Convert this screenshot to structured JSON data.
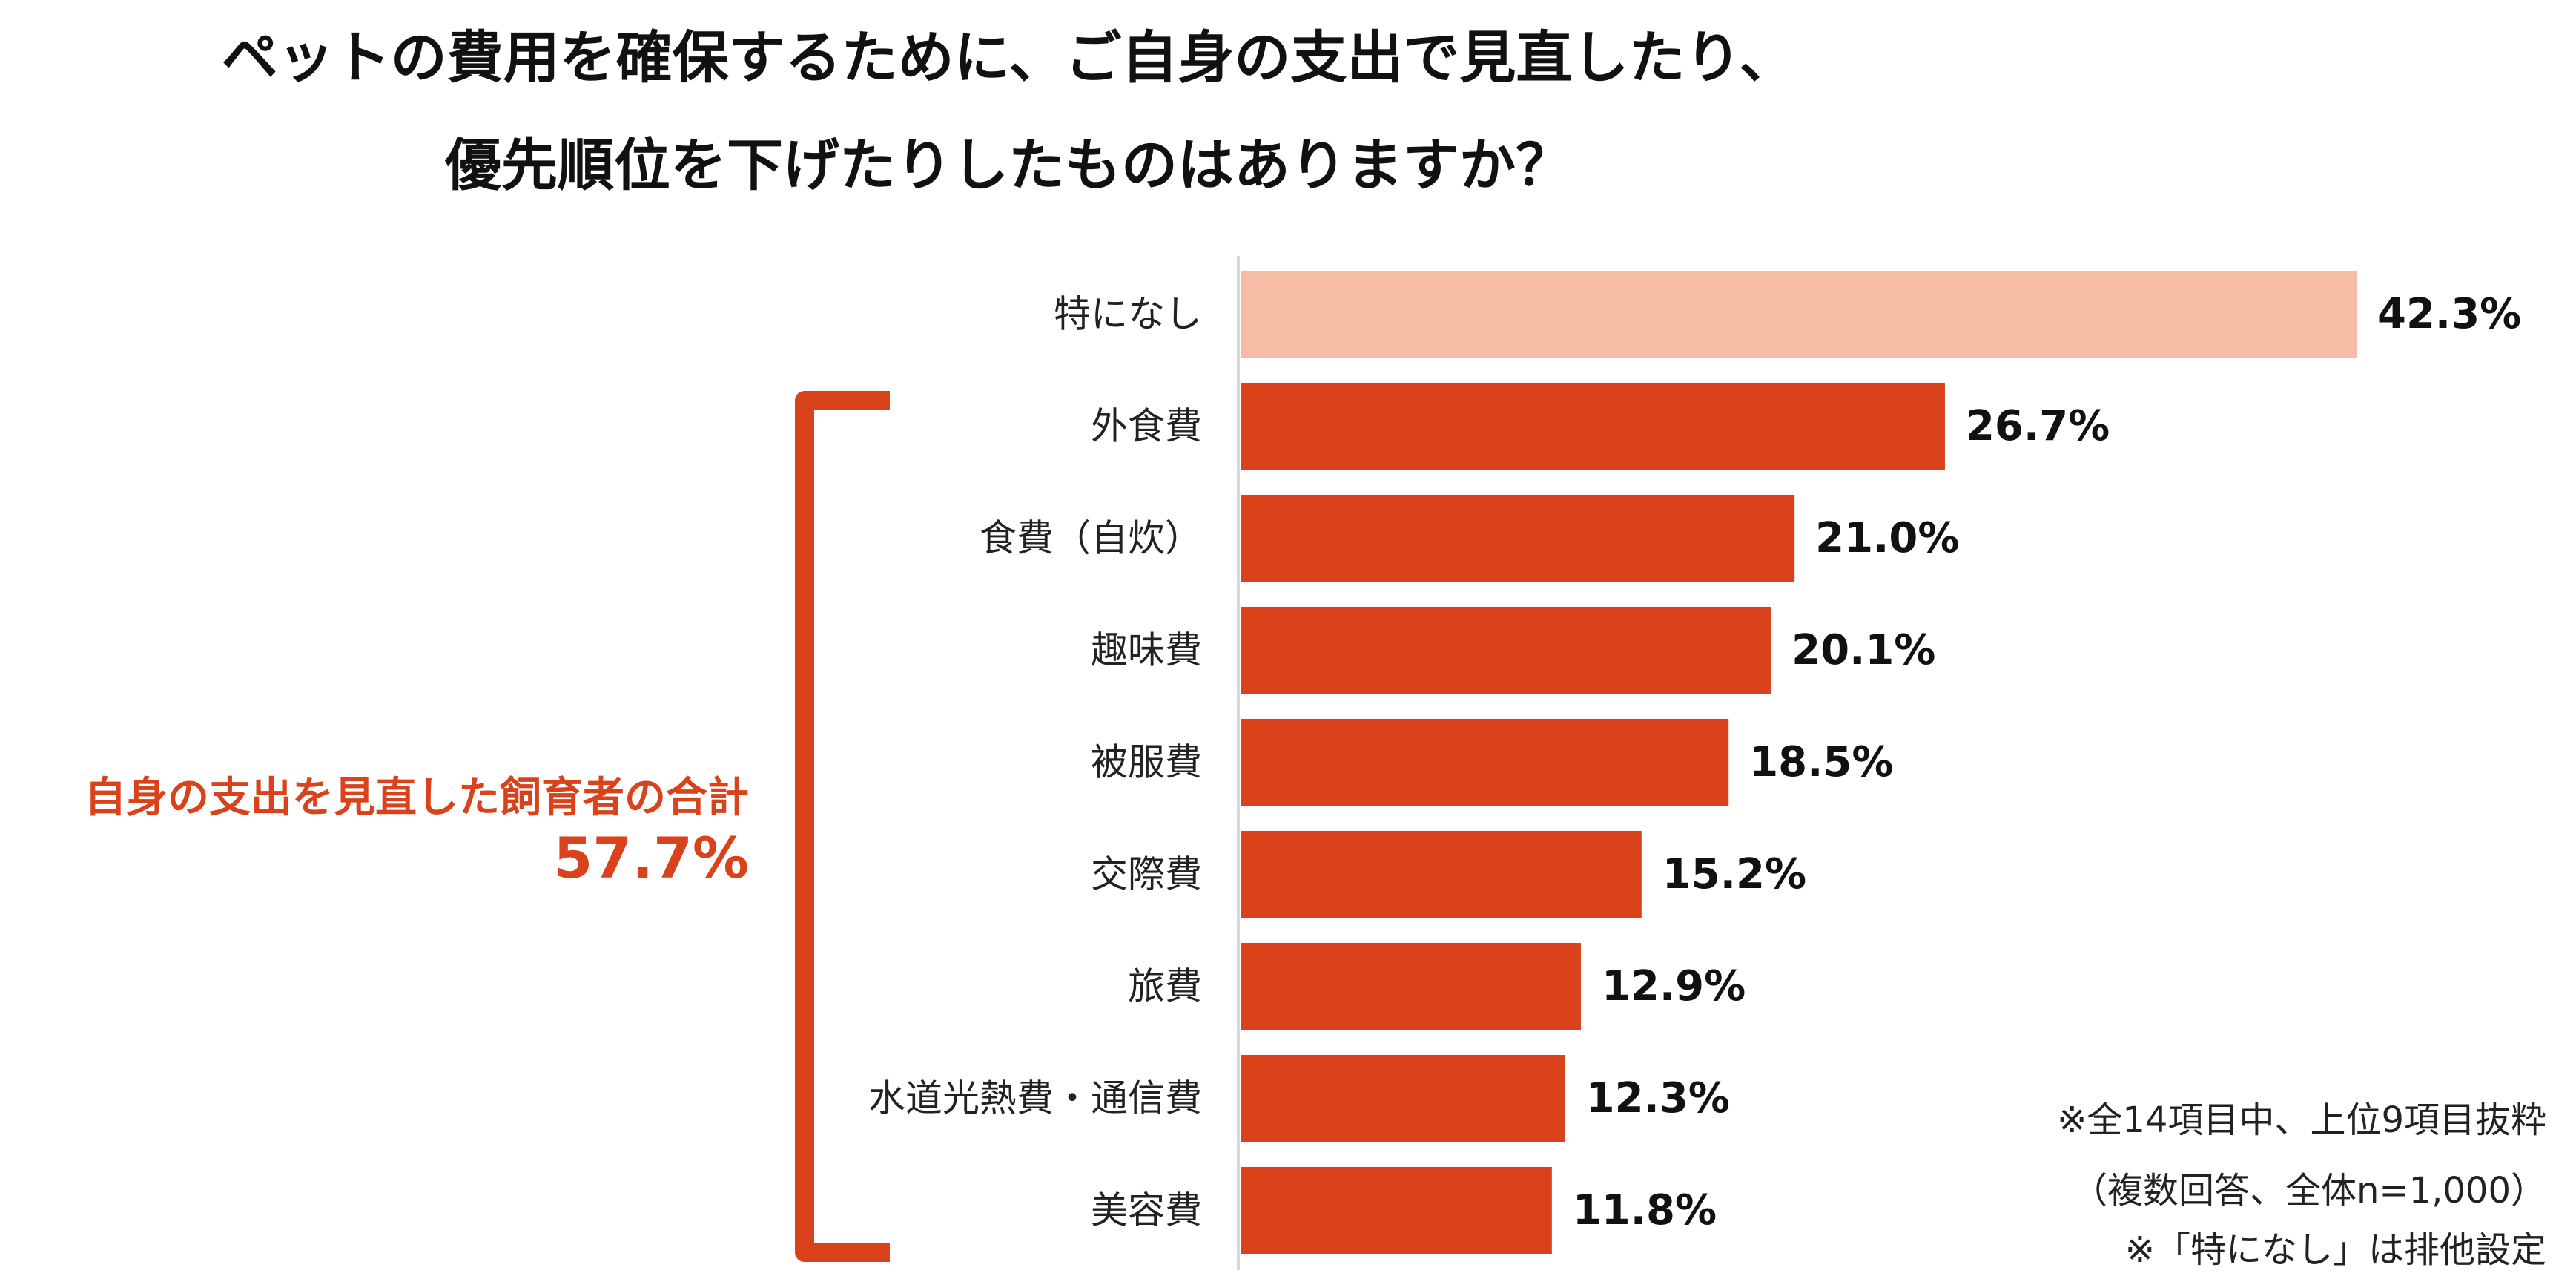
{
  "title": {
    "line1": "ペットの費用を確保するために、ご自身の支出で見直したり、",
    "line2": "優先順位を下げたりしたものはありますか？"
  },
  "chart_data": {
    "type": "bar",
    "orientation": "horizontal",
    "categories": [
      "特になし",
      "外食費",
      "食費（自炊）",
      "趣味費",
      "被服費",
      "交際費",
      "旅費",
      "水道光熱費・通信費",
      "美容費"
    ],
    "values": [
      42.3,
      26.7,
      21.0,
      20.1,
      18.5,
      15.2,
      12.9,
      12.3,
      11.8
    ],
    "value_labels": [
      "42.3%",
      "26.7%",
      "21.0%",
      "20.1%",
      "18.5%",
      "15.2%",
      "12.9%",
      "12.3%",
      "11.8%"
    ],
    "unit": "%",
    "highlight_category": "特になし",
    "colors": {
      "highlight": "#f6bda4",
      "bar": "#d9421a",
      "bracket": "#d9421a",
      "axis": "#d8d8d8"
    },
    "grid": false
  },
  "summary": {
    "label": "自身の支出を見直した飼育者の合計",
    "value": "57.7%"
  },
  "notes": [
    "※全14項目中、上位9項目抜粋",
    "（複数回答、全体n=1,000）",
    "※「特になし」は排他設定"
  ]
}
